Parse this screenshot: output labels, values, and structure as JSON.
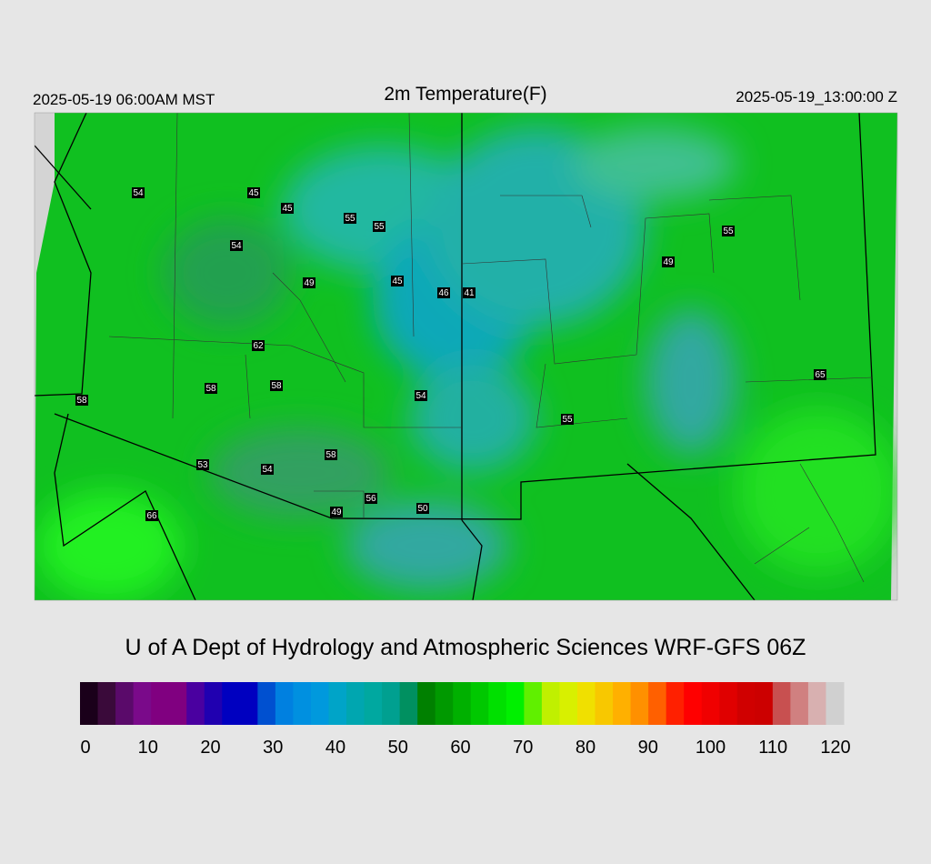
{
  "header": {
    "left": "2025-05-19 06:00AM MST",
    "title": "2m Temperature(F)",
    "right": "2025-05-19_13:00:00 Z"
  },
  "stations": [
    54,
    45,
    45,
    55,
    55,
    54,
    49,
    45,
    46,
    41,
    62,
    58,
    58,
    54,
    58,
    53,
    54,
    58,
    56,
    49,
    50,
    66,
    55,
    49,
    55,
    65
  ],
  "footer": "U of A Dept of Hydrology and Atmospheric Sciences WRF-GFS 06Z",
  "colorbar": {
    "lim": [
      0,
      120
    ],
    "ticks": [
      0,
      10,
      20,
      30,
      40,
      50,
      60,
      70,
      80,
      90,
      100,
      110,
      120
    ],
    "colors": [
      "#1a001a",
      "#3a0a3a",
      "#5a0a6a",
      "#7a0a8a",
      "#800080",
      "#800080",
      "#4a00a0",
      "#2000b0",
      "#0000c0",
      "#0000c0",
      "#0050d0",
      "#0080e0",
      "#0090e0",
      "#0099dd",
      "#00a4c8",
      "#00a6b0",
      "#00a8a0",
      "#00a090",
      "#009060",
      "#008000",
      "#009900",
      "#00b000",
      "#00c800",
      "#00e000",
      "#00f000",
      "#60f000",
      "#c0f000",
      "#d8f000",
      "#f0e000",
      "#f8c800",
      "#ffb000",
      "#ff9000",
      "#ff6000",
      "#ff2000",
      "#ff0000",
      "#f00000",
      "#e00000",
      "#d00000",
      "#cc0000",
      "#c85050",
      "#d08080",
      "#d8b0b0",
      "#d0d0d0"
    ]
  }
}
